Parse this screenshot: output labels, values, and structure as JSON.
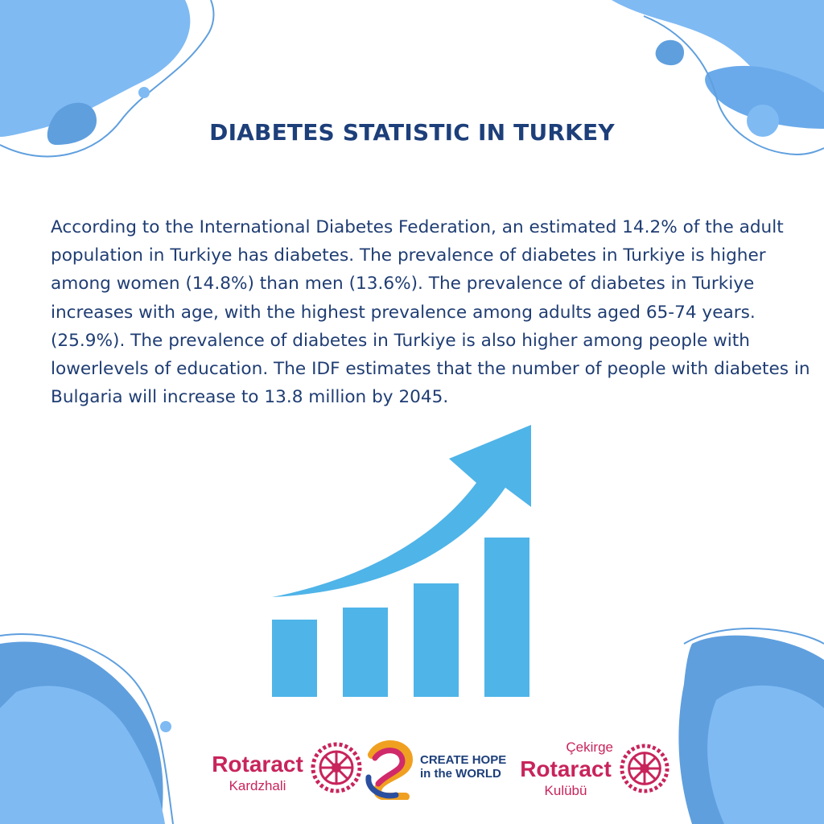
{
  "title": "DIABETES STATISTIC IN TURKEY",
  "paragraph": "According to the International Diabetes Federation, an estimated 14.2% of the adult population in Turkiye has diabetes. The prevalence of diabetes in Turkiye is higher among women (14.8%) than men (13.6%). The prevalence of diabetes in Turkiye increases with age, with the highest prevalence among adults aged 65-74 years. (25.9%). The prevalence of diabetes in Turkiye is also higher among people with lowerlevels of education. The IDF estimates that the number of people with diabetes in Bulgaria will increase to 13.8 million by 2045.",
  "illustration": {
    "icon": "rising-bar-chart-with-arrow-icon",
    "bar_levels": [
      0.32,
      0.37,
      0.47,
      0.66
    ],
    "color": "#4fb4e8"
  },
  "logos": {
    "left": {
      "name": "Rotaract",
      "sub": "Kardzhali",
      "icon": "rotary-wheel-icon"
    },
    "center": {
      "line1": "CREATE HOPE",
      "line2": "in the WORLD",
      "icon": "create-hope-swirl-icon"
    },
    "right": {
      "top": "Çekirge",
      "name": "Rotaract",
      "sub": "Kulübü",
      "icon": "rotary-wheel-icon"
    }
  },
  "colors": {
    "title": "#1d3f7a",
    "text": "#1f3d73",
    "blob_light": "#7fbaf3",
    "blob_mid": "#5f9fde",
    "rotaract": "#c8245c"
  }
}
